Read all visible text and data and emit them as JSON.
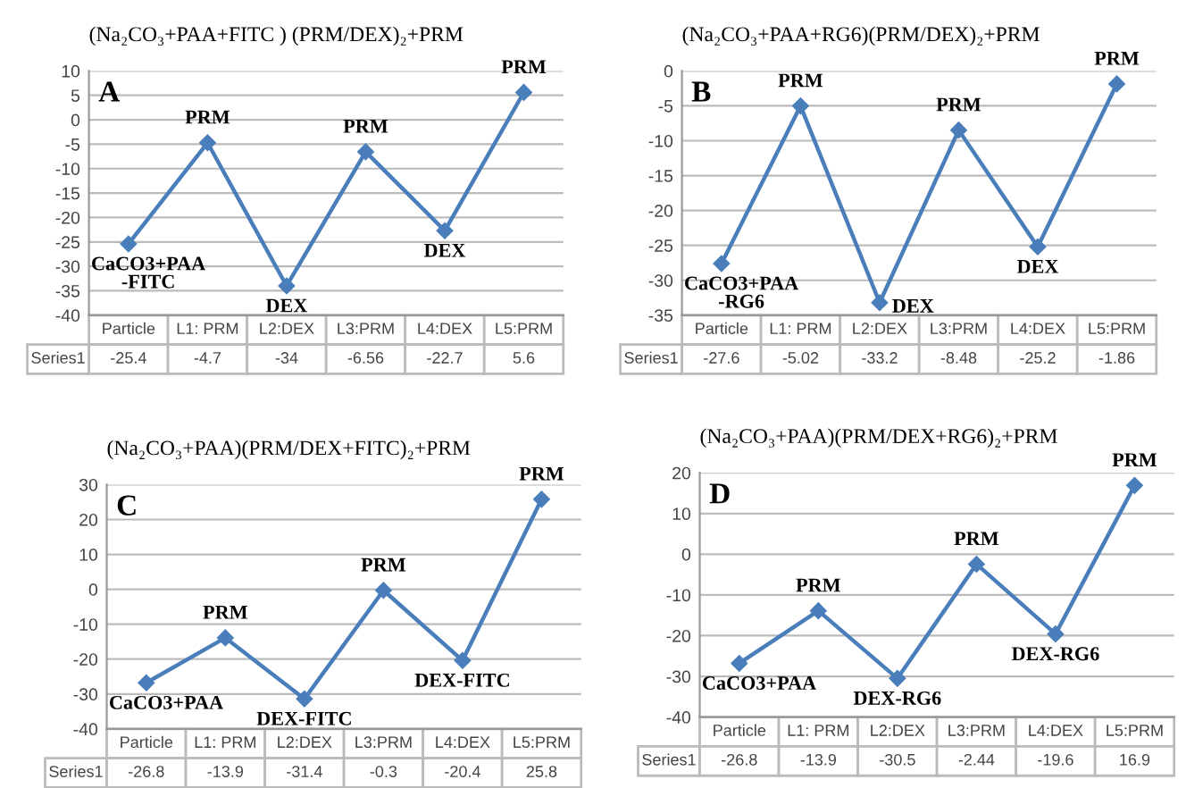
{
  "chart_data": [
    {
      "type": "line",
      "title": "(Na₂CO₃+PAA+FITC ) (PRM/DEX)₂+PRM",
      "categories": [
        "Particle",
        "L1: PRM",
        "L2:DEX",
        "L3:PRM",
        "L4:DEX",
        "L5:PRM"
      ],
      "series": [
        {
          "name": "Series1",
          "color": "#4a7ebb",
          "values": [
            -25.4,
            -4.7,
            -34,
            -6.56,
            -22.7,
            5.6
          ]
        }
      ],
      "ylim": [
        -40,
        10
      ],
      "yticks": [
        -40,
        -35,
        -30,
        -25,
        -20,
        -15,
        -10,
        -5,
        0,
        5,
        10
      ],
      "grid": "y",
      "legend": false,
      "marker": "diamond",
      "line_style": "solid",
      "data_labels": true,
      "annotations": [
        "A",
        {
          "text": "CaCO3+PAA\n-FITC",
          "x": "Particle",
          "y": -25.4
        },
        {
          "text": "PRM",
          "x": "L1: PRM",
          "y": -4.7
        },
        {
          "text": "DEX",
          "x": "L2:DEX",
          "y": -34
        },
        {
          "text": "PRM",
          "x": "L3:PRM",
          "y": -6.56
        },
        {
          "text": "DEX",
          "x": "L4:DEX",
          "y": -22.7
        },
        {
          "text": "PRM",
          "x": "L5:PRM",
          "y": 5.6
        }
      ]
    },
    {
      "type": "line",
      "title": "(Na₂CO₃+PAA+RG6)(PRM/DEX)₂+PRM",
      "categories": [
        "Particle",
        "L1: PRM",
        "L2:DEX",
        "L3:PRM",
        "L4:DEX",
        "L5:PRM"
      ],
      "series": [
        {
          "name": "Series1",
          "color": "#4a7ebb",
          "values": [
            -27.6,
            -5.02,
            -33.2,
            -8.48,
            -25.2,
            -1.86
          ]
        }
      ],
      "ylim": [
        -35,
        0
      ],
      "yticks": [
        -35,
        -30,
        -25,
        -20,
        -15,
        -10,
        -5,
        0
      ],
      "grid": "y",
      "legend": false,
      "marker": "diamond",
      "line_style": "solid",
      "data_labels": true,
      "annotations": [
        "B",
        {
          "text": "CaCO3+PAA\n-RG6",
          "x": "Particle",
          "y": -27.6
        },
        {
          "text": "PRM",
          "x": "L1: PRM",
          "y": -5.02
        },
        {
          "text": "DEX",
          "x": "L2:DEX",
          "y": -33.2
        },
        {
          "text": "PRM",
          "x": "L3:PRM",
          "y": -8.48
        },
        {
          "text": "DEX",
          "x": "L4:DEX",
          "y": -25.2
        },
        {
          "text": "PRM",
          "x": "L5:PRM",
          "y": -1.86
        }
      ]
    },
    {
      "type": "line",
      "title": "(Na₂CO₃+PAA)(PRM/DEX+FITC)₂+PRM",
      "categories": [
        "Particle",
        "L1: PRM",
        "L2:DEX",
        "L3:PRM",
        "L4:DEX",
        "L5:PRM"
      ],
      "series": [
        {
          "name": "Series1",
          "color": "#4a7ebb",
          "values": [
            -26.8,
            -13.9,
            -31.4,
            -0.3,
            -20.4,
            25.8
          ]
        }
      ],
      "ylim": [
        -40,
        30
      ],
      "yticks": [
        -40,
        -30,
        -20,
        -10,
        0,
        10,
        20,
        30
      ],
      "grid": "y",
      "legend": false,
      "marker": "diamond",
      "line_style": "solid",
      "data_labels": true,
      "annotations": [
        "C",
        {
          "text": "CaCO3+PAA",
          "x": "Particle",
          "y": -26.8
        },
        {
          "text": "PRM",
          "x": "L1: PRM",
          "y": -13.9
        },
        {
          "text": "DEX-FITC",
          "x": "L2:DEX",
          "y": -31.4
        },
        {
          "text": "PRM",
          "x": "L3:PRM",
          "y": -0.3
        },
        {
          "text": "DEX-FITC",
          "x": "L4:DEX",
          "y": -20.4
        },
        {
          "text": "PRM",
          "x": "L5:PRM",
          "y": 25.8
        }
      ]
    },
    {
      "type": "line",
      "title": "(Na₂CO₃+PAA)(PRM/DEX+RG6)₂+PRM",
      "categories": [
        "Particle",
        "L1: PRM",
        "L2:DEX",
        "L3:PRM",
        "L4:DEX",
        "L5:PRM"
      ],
      "series": [
        {
          "name": "Series1",
          "color": "#4a7ebb",
          "values": [
            -26.8,
            -13.9,
            -30.5,
            -2.44,
            -19.6,
            16.9
          ]
        }
      ],
      "ylim": [
        -40,
        20
      ],
      "yticks": [
        -40,
        -30,
        -20,
        -10,
        0,
        10,
        20
      ],
      "grid": "y",
      "legend": false,
      "marker": "diamond",
      "line_style": "solid",
      "data_labels": true,
      "annotations": [
        "D",
        {
          "text": "CaCO3+PAA",
          "x": "Particle",
          "y": -26.8
        },
        {
          "text": "PRM",
          "x": "L1: PRM",
          "y": -13.9
        },
        {
          "text": "DEX-RG6",
          "x": "L2:DEX",
          "y": -30.5
        },
        {
          "text": "PRM",
          "x": "L3:PRM",
          "y": -2.44
        },
        {
          "text": "DEX-RG6",
          "x": "L4:DEX",
          "y": -19.6
        },
        {
          "text": "PRM",
          "x": "L5:PRM",
          "y": 16.9
        }
      ]
    }
  ]
}
